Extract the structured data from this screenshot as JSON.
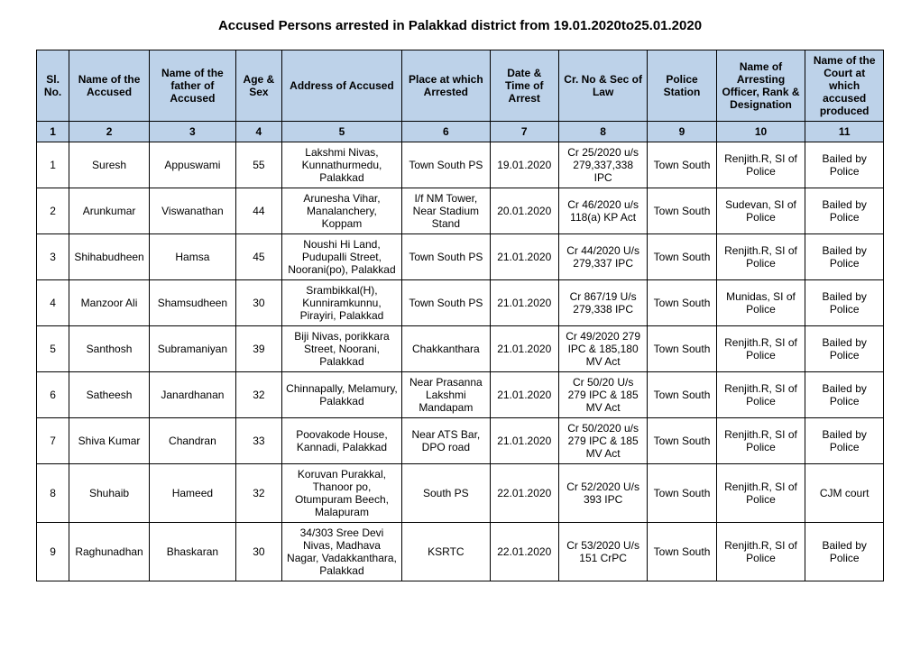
{
  "title": "Accused Persons arrested in   Palakkad  district from   19.01.2020to25.01.2020",
  "headers": {
    "c1": "Sl. No.",
    "c2": "Name of the Accused",
    "c3": "Name of the father of Accused",
    "c4": "Age & Sex",
    "c5": "Address of Accused",
    "c6": "Place at which Arrested",
    "c7": "Date & Time of Arrest",
    "c8": "Cr. No & Sec of Law",
    "c9": "Police Station",
    "c10": "Name of Arresting Officer, Rank & Designation",
    "c11": "Name of the Court at which accused produced"
  },
  "numrow": {
    "c1": "1",
    "c2": "2",
    "c3": "3",
    "c4": "4",
    "c5": "5",
    "c6": "6",
    "c7": "7",
    "c8": "8",
    "c9": "9",
    "c10": "10",
    "c11": "11"
  },
  "rows": [
    {
      "c1": "1",
      "c2": "Suresh",
      "c3": "Appuswami",
      "c4": "55",
      "c5": "Lakshmi Nivas, Kunnathurmedu, Palakkad",
      "c6": "Town South PS",
      "c7": "19.01.2020",
      "c8": "Cr 25/2020 u/s 279,337,338 IPC",
      "c9": "Town South",
      "c10": "Renjith.R, SI of Police",
      "c11": "Bailed by Police"
    },
    {
      "c1": "2",
      "c2": "Arunkumar",
      "c3": "Viswanathan",
      "c4": "44",
      "c5": "Arunesha Vihar, Manalanchery, Koppam",
      "c6": "I/f NM Tower, Near Stadium Stand",
      "c7": "20.01.2020",
      "c8": "Cr  46/2020 u/s 118(a) KP Act",
      "c9": "Town South",
      "c10": "Sudevan, SI of Police",
      "c11": "Bailed by Police"
    },
    {
      "c1": "3",
      "c2": "Shihabudheen",
      "c3": "Hamsa",
      "c4": "45",
      "c5": "Noushi Hi Land, Pudupalli Street, Noorani(po), Palakkad",
      "c6": "Town South PS",
      "c7": "21.01.2020",
      "c8": "Cr 44/2020 U/s 279,337 IPC",
      "c9": "Town South",
      "c10": "Renjith.R, SI of Police",
      "c11": "Bailed by Police"
    },
    {
      "c1": "4",
      "c2": "Manzoor Ali",
      "c3": "Shamsudheen",
      "c4": "30",
      "c5": "Srambikkal(H), Kunniramkunnu, Pirayiri, Palakkad",
      "c6": "Town South PS",
      "c7": "21.01.2020",
      "c8": "Cr 867/19 U/s 279,338 IPC",
      "c9": "Town South",
      "c10": "Munidas, SI of Police",
      "c11": "Bailed by Police"
    },
    {
      "c1": "5",
      "c2": "Santhosh",
      "c3": "Subramaniyan",
      "c4": "39",
      "c5": "Biji Nivas, porikkara Street, Noorani, Palakkad",
      "c6": "Chakkanthara",
      "c7": "21.01.2020",
      "c8": "Cr 49/2020 279 IPC & 185,180 MV  Act",
      "c9": "Town South",
      "c10": "Renjith.R, SI of Police",
      "c11": "Bailed by Police"
    },
    {
      "c1": "6",
      "c2": "Satheesh",
      "c3": "Janardhanan",
      "c4": "32",
      "c5": "Chinnapally, Melamury,  Palakkad",
      "c6": "Near Prasanna Lakshmi Mandapam",
      "c7": "21.01.2020",
      "c8": "Cr  50/20 U/s 279 IPC & 185 MV Act",
      "c9": "Town South",
      "c10": "Renjith.R, SI of Police",
      "c11": "Bailed by Police"
    },
    {
      "c1": "7",
      "c2": "Shiva Kumar",
      "c3": "Chandran",
      "c4": "33",
      "c5": "Poovakode House, Kannadi, Palakkad",
      "c6": "Near  ATS Bar, DPO road",
      "c7": "21.01.2020",
      "c8": "Cr 50/2020  u/s 279 IPC & 185 MV Act",
      "c9": "Town South",
      "c10": "Renjith.R, SI of Police",
      "c11": "Bailed by Police"
    },
    {
      "c1": "8",
      "c2": "Shuhaib",
      "c3": "Hameed",
      "c4": "32",
      "c5": "Koruvan Purakkal, Thanoor po, Otumpuram Beech, Malapuram",
      "c6": "South PS",
      "c7": "22.01.2020",
      "c8": "Cr 52/2020 U/s 393 IPC",
      "c9": "Town South",
      "c10": "Renjith.R, SI of Police",
      "c11": "CJM court"
    },
    {
      "c1": "9",
      "c2": "Raghunadhan",
      "c3": "Bhaskaran",
      "c4": "30",
      "c5": "34/303  Sree  Devi Nivas, Madhava Nagar, Vadakkanthara, Palakkad",
      "c6": "KSRTC",
      "c7": "22.01.2020",
      "c8": "Cr 53/2020 U/s 151 CrPC",
      "c9": "Town South",
      "c10": "Renjith.R, SI of Police",
      "c11": "Bailed by Police"
    }
  ]
}
